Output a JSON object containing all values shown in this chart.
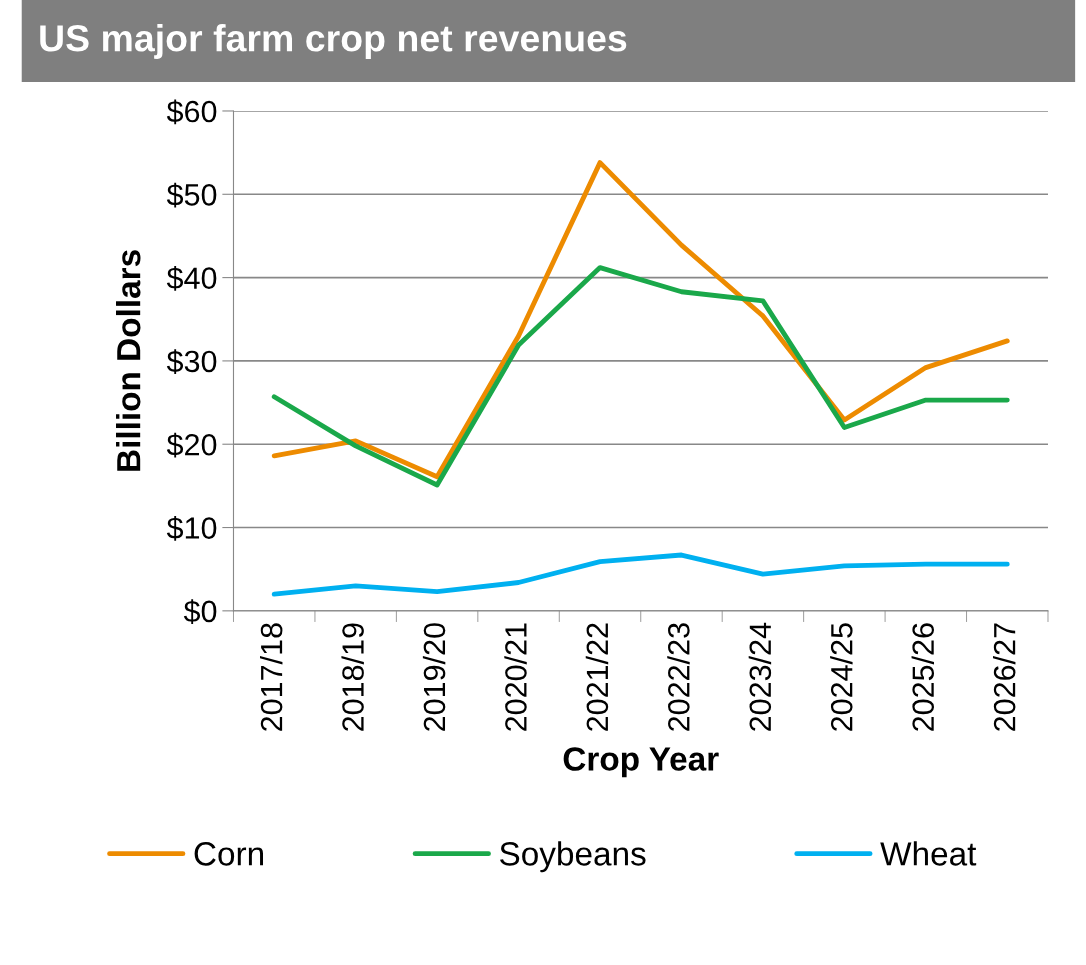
{
  "chart_data": {
    "type": "line",
    "title": "US major farm crop net revenues",
    "xlabel": "Crop Year",
    "ylabel": "Billion Dollars",
    "categories": [
      "2017/18",
      "2018/19",
      "2019/20",
      "2020/21",
      "2021/22",
      "2022/23",
      "2023/24",
      "2024/25",
      "2025/26",
      "2026/27"
    ],
    "series": [
      {
        "name": "Corn",
        "color": "#ed8b00",
        "values": [
          18.6,
          20.4,
          16.1,
          33,
          53.8,
          43.9,
          35.4,
          22.9,
          29.2,
          32.4
        ]
      },
      {
        "name": "Soybeans",
        "color": "#1aa84a",
        "values": [
          25.7,
          19.8,
          15.1,
          31.9,
          41.2,
          38.3,
          37.2,
          22.0,
          25.3,
          25.3
        ]
      },
      {
        "name": "Wheat",
        "color": "#00b0f0",
        "values": [
          2.0,
          3.0,
          2.3,
          3.4,
          5.9,
          6.7,
          4.4,
          5.4,
          5.6,
          5.6
        ]
      }
    ],
    "ylim": [
      0,
      60
    ],
    "yticks": [
      {
        "value": 0,
        "label": "$0"
      },
      {
        "value": 10,
        "label": "$10"
      },
      {
        "value": 20,
        "label": "$20"
      },
      {
        "value": 30,
        "label": "$30"
      },
      {
        "value": 40,
        "label": "$40"
      },
      {
        "value": 50,
        "label": "$50"
      },
      {
        "value": 60,
        "label": "$60"
      }
    ],
    "grid": "y",
    "legend": "bottom",
    "marker": "none",
    "line_style": "solid"
  }
}
